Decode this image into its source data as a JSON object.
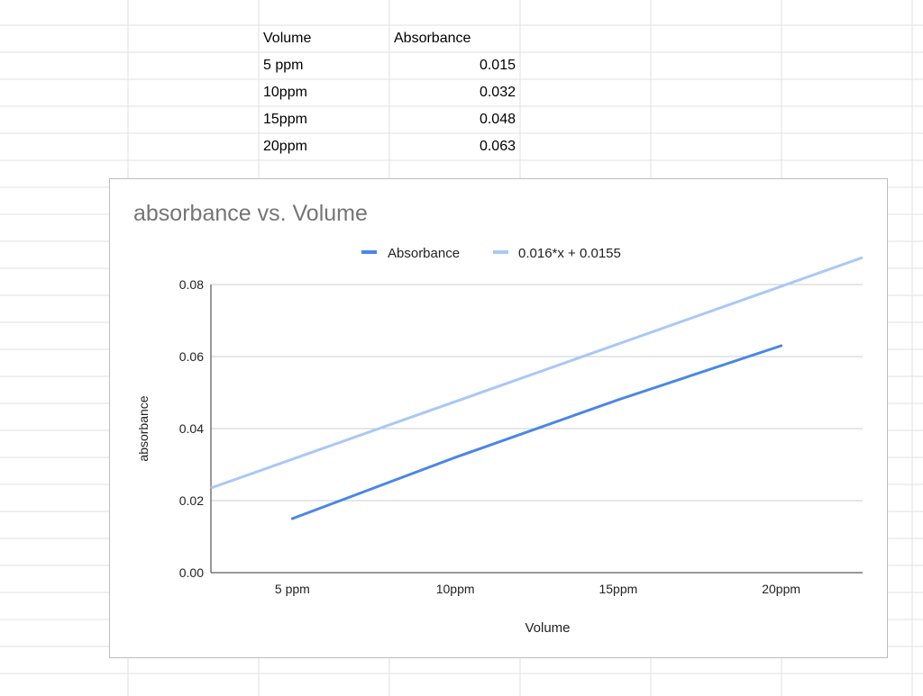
{
  "table": {
    "headers": [
      "Volume",
      "Absorbance"
    ],
    "rows": [
      {
        "volume": "5 ppm",
        "absorbance": "0.015"
      },
      {
        "volume": "10ppm",
        "absorbance": "0.032"
      },
      {
        "volume": "15ppm",
        "absorbance": "0.048"
      },
      {
        "volume": "20ppm",
        "absorbance": "0.063"
      }
    ]
  },
  "chart_data": {
    "type": "line",
    "title": "absorbance vs. Volume",
    "xlabel": "Volume",
    "ylabel": "absorbance",
    "categories": [
      "5 ppm",
      "10ppm",
      "15ppm",
      "20ppm"
    ],
    "series": [
      {
        "name": "Absorbance",
        "values": [
          0.015,
          0.032,
          0.048,
          0.063
        ],
        "color": "#4a86e8"
      }
    ],
    "trendline": {
      "name": "0.016*x + 0.0155",
      "slope": 0.016,
      "intercept": 0.0155,
      "color": "#a9c8f5"
    },
    "ylim": [
      0,
      0.08
    ],
    "yticks": [
      "0.00",
      "0.02",
      "0.04",
      "0.06",
      "0.08"
    ],
    "grid": true,
    "legend_position": "top"
  }
}
